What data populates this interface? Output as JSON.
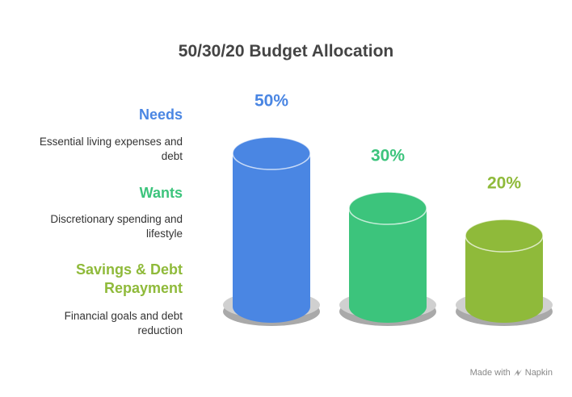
{
  "chart_data": {
    "type": "bar",
    "title": "50/30/20 Budget Allocation",
    "categories": [
      "Needs",
      "Wants",
      "Savings & Debt Repayment"
    ],
    "descriptions": [
      "Essential living expenses and debt",
      "Discretionary spending and lifestyle",
      "Financial goals and debt reduction"
    ],
    "values": [
      50,
      30,
      20
    ],
    "value_labels": [
      "50%",
      "30%",
      "20%"
    ],
    "colors": [
      "#4a86e3",
      "#3cc47c",
      "#8fba3a"
    ]
  },
  "footer": {
    "text": "Made with",
    "brand": "Napkin"
  }
}
